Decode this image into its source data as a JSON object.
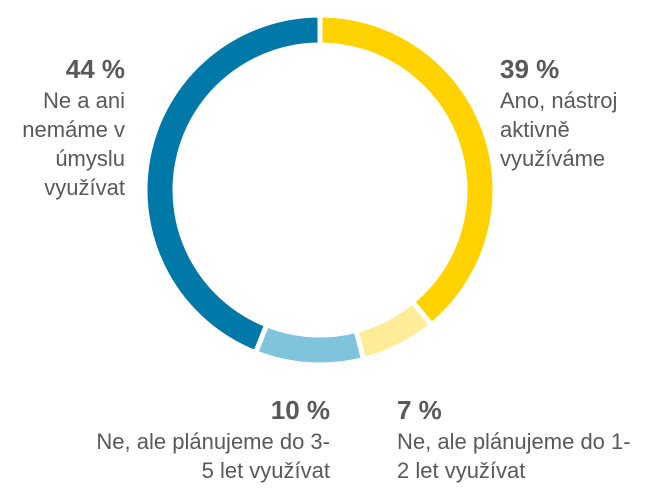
{
  "chart_data": {
    "type": "donut",
    "categories": [
      "Ano, nástroj aktivně využíváme",
      "Ne, ale plánujeme do 1-2 let využívat",
      "Ne, ale plánujeme do 3-5 let využívat",
      "Ne a ani nemáme v úmyslu využívat"
    ],
    "values": [
      39,
      7,
      10,
      44
    ],
    "value_labels": [
      "39 %",
      "7 %",
      "10 %",
      "44 %"
    ],
    "colors": [
      "#ffd200",
      "#ffec99",
      "#7fc3dc",
      "#0079a8"
    ]
  }
}
